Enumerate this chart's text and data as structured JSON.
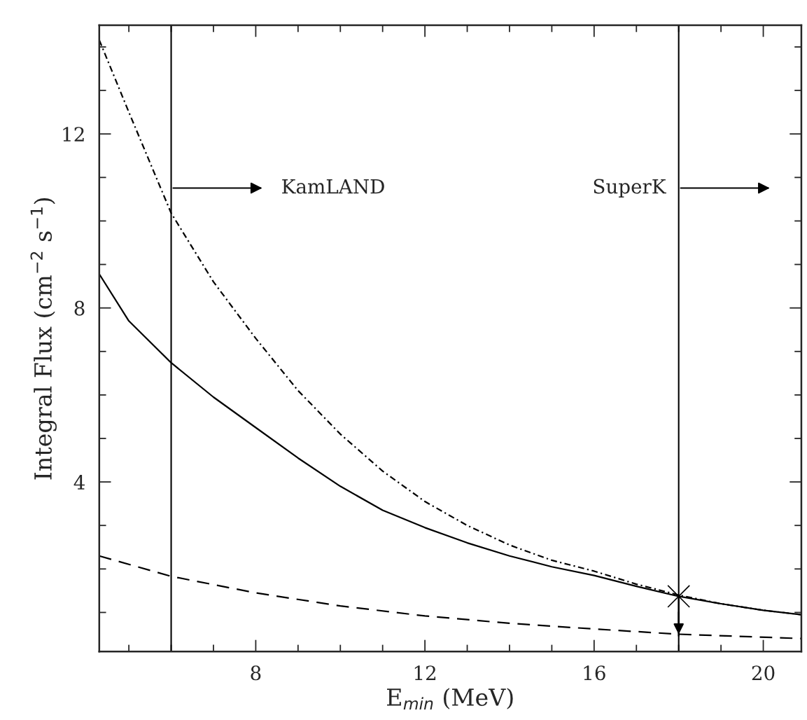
{
  "chart_data": {
    "type": "line",
    "xlabel": "E$_{min}$ (MeV)",
    "ylabel": "Integral Flux (cm$^{−2}$ s$^{−1}$)",
    "xlim": [
      4.3,
      20.9
    ],
    "ylim": [
      0.1,
      14.5
    ],
    "xticks": [
      {
        "value": 5,
        "label": null
      },
      {
        "value": 6,
        "label": null
      },
      {
        "value": 7,
        "label": null
      },
      8,
      {
        "value": 9,
        "label": null
      },
      {
        "value": 10,
        "label": null
      },
      {
        "value": 11,
        "label": null
      },
      12,
      {
        "value": 13,
        "label": null
      },
      {
        "value": 14,
        "label": null
      },
      {
        "value": 15,
        "label": null
      },
      16,
      {
        "value": 17,
        "label": null
      },
      {
        "value": 18,
        "label": null
      },
      {
        "value": 19,
        "label": null
      },
      20
    ],
    "yticks": [
      {
        "value": 1,
        "label": null
      },
      {
        "value": 2,
        "label": null
      },
      {
        "value": 3,
        "label": null
      },
      4,
      {
        "value": 5,
        "label": null
      },
      {
        "value": 6,
        "label": null
      },
      {
        "value": 7,
        "label": null
      },
      8,
      {
        "value": 9,
        "label": null
      },
      {
        "value": 10,
        "label": null
      },
      {
        "value": 11,
        "label": null
      },
      12,
      {
        "value": 13,
        "label": null
      },
      {
        "value": 14,
        "label": null
      }
    ],
    "grid": false,
    "legend": false,
    "series": [
      {
        "color": "#000000",
        "line_style": "dotted",
        "x": [
          4.3,
          5,
          6,
          7,
          8,
          9,
          10,
          11,
          12,
          13,
          14,
          15,
          16,
          17,
          18,
          19,
          20,
          20.9
        ],
        "values": [
          14.16,
          12.5,
          10.18,
          8.6,
          7.3,
          6.1,
          5.1,
          4.25,
          3.55,
          3.0,
          2.55,
          2.2,
          1.95,
          1.65,
          1.4,
          1.2,
          1.05,
          0.95
        ]
      },
      {
        "color": "#000000",
        "line_style": "solid",
        "x": [
          4.3,
          5,
          6,
          7,
          8,
          9,
          10,
          11,
          12,
          13,
          14,
          15,
          16,
          17,
          18,
          19,
          20,
          20.9
        ],
        "values": [
          8.78,
          7.7,
          6.74,
          5.95,
          5.25,
          4.55,
          3.9,
          3.35,
          2.95,
          2.6,
          2.3,
          2.05,
          1.85,
          1.6,
          1.37,
          1.2,
          1.05,
          0.95
        ]
      },
      {
        "color": "#000000",
        "line_style": "dashed",
        "x": [
          4.3,
          6,
          8,
          10,
          12,
          14,
          16,
          18,
          20.9
        ],
        "values": [
          2.3,
          1.83,
          1.45,
          1.15,
          0.92,
          0.75,
          0.62,
          0.5,
          0.4
        ]
      },
      {
        "type": "scatter",
        "color": "#000000",
        "marker": "cross",
        "x": [
          18
        ],
        "values": [
          1.37
        ],
        "errors": [
          [
            0.45,
            1.37
          ]
        ]
      }
    ],
    "ref_lines": [
      {
        "axis": "x",
        "value": 6,
        "color": "#000000",
        "line_style": "solid",
        "label": "KamLAND"
      },
      {
        "axis": "x",
        "value": 18,
        "color": "#000000",
        "line_style": "solid",
        "label": "SuperK"
      }
    ]
  }
}
